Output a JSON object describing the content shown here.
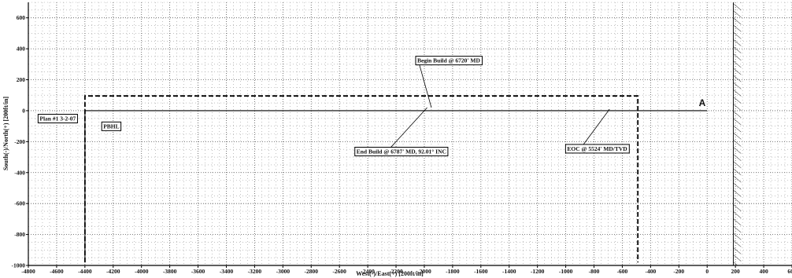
{
  "chart_data": {
    "type": "line",
    "xlabel": "West(-)/East(+) [200ft/in]",
    "ylabel": "South(-)/North(+) [200ft/in]",
    "xlim": [
      -4800,
      600
    ],
    "ylim": [
      -1000,
      700
    ],
    "x_ticks": [
      -4800,
      -4600,
      -4400,
      -4200,
      -4000,
      -3800,
      -3600,
      -3400,
      -3200,
      -3000,
      -2800,
      -2600,
      -2400,
      -2200,
      -2000,
      -1800,
      -1600,
      -1400,
      -1200,
      -1000,
      -800,
      -600,
      -400,
      -200,
      0,
      200,
      400,
      600
    ],
    "y_ticks": [
      600,
      400,
      200,
      0,
      -200,
      -400,
      -600,
      -800,
      -1000
    ],
    "grid": true,
    "series": [
      {
        "style": "solid",
        "x": [
          -4400,
          -4400,
          0
        ],
        "y": [
          -980,
          0,
          0
        ]
      },
      {
        "style": "dashed",
        "x": [
          -4400,
          -4400,
          -490,
          -490
        ],
        "y": [
          -980,
          95,
          95,
          -980
        ]
      }
    ],
    "hatched_band": {
      "x_from": 185,
      "x_to": 240
    },
    "annotations": [
      {
        "text": "Begin Build @ 6720' MD",
        "x": -2050,
        "y": 320
      },
      {
        "text": "End Build @ 6787' MD, 92.01° INC",
        "x": -2480,
        "y": -268
      },
      {
        "text": "EOC @ 5524' MD/TVD",
        "x": -990,
        "y": -250
      },
      {
        "text": "Plan #1 3-2-07",
        "x": -4720,
        "y": -55
      },
      {
        "text": "PBHL",
        "x": -4270,
        "y": -105
      },
      {
        "text": "A",
        "x": -35,
        "y": 50
      }
    ]
  }
}
